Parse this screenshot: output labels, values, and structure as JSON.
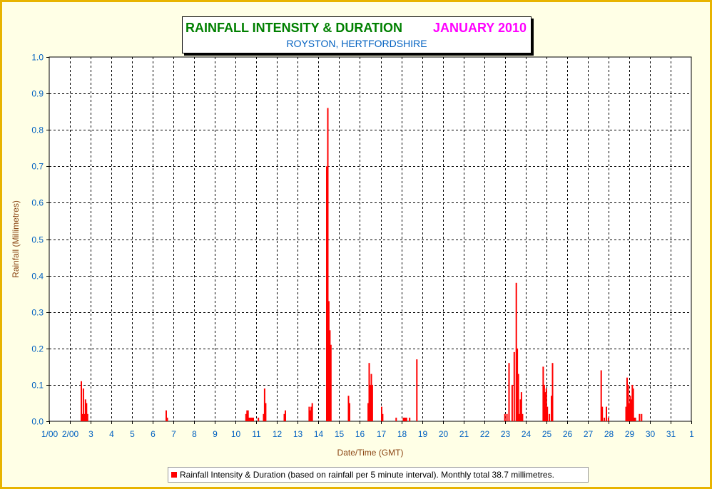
{
  "colors": {
    "frame": "#e8b400",
    "background": "#ffffe6",
    "title_green": "#008000",
    "title_magenta": "#ff00ff",
    "subtitle_blue": "#0060c0",
    "axis_blue": "#0060c0",
    "axis_label": "#8b4513",
    "bar": "#ff0000"
  },
  "chart_data": {
    "type": "bar",
    "title": "RAINFALL INTENSITY & DURATION",
    "title_month": "JANUARY 2010",
    "subtitle": "ROYSTON, HERTFORDSHIRE",
    "xlabel": "Date/Time (GMT)",
    "ylabel": "Rainfall (Millimetres)",
    "ylim": [
      0,
      1.0
    ],
    "xlim_days": [
      0,
      31
    ],
    "grid": true,
    "legend_position": "bottom",
    "yticks": [
      "0.0",
      "0.1",
      "0.2",
      "0.3",
      "0.4",
      "0.5",
      "0.6",
      "0.7",
      "0.8",
      "0.9",
      "1.0"
    ],
    "xticks": [
      "1/00",
      "2/00",
      "3",
      "4",
      "5",
      "6",
      "7",
      "8",
      "9",
      "10",
      "11",
      "12",
      "13",
      "14",
      "15",
      "16",
      "17",
      "18",
      "19",
      "20",
      "21",
      "22",
      "23",
      "24",
      "25",
      "26",
      "27",
      "28",
      "29",
      "30",
      "31",
      "1"
    ],
    "series": [
      {
        "name": "Rainfall Intensity & Duration (based on rainfall per 5 minute interval). Monthly total 38.7 millimetres.",
        "points": [
          [
            1.55,
            0.11
          ],
          [
            1.6,
            0.02
          ],
          [
            1.65,
            0.09
          ],
          [
            1.7,
            0.02
          ],
          [
            1.75,
            0.06
          ],
          [
            1.8,
            0.05
          ],
          [
            1.85,
            0.02
          ],
          [
            5.65,
            0.03
          ],
          [
            5.7,
            0.01
          ],
          [
            9.5,
            0.02
          ],
          [
            9.55,
            0.03
          ],
          [
            9.6,
            0.03
          ],
          [
            9.65,
            0.01
          ],
          [
            9.7,
            0.01
          ],
          [
            9.75,
            0.01
          ],
          [
            9.8,
            0.01
          ],
          [
            9.85,
            0.01
          ],
          [
            10.1,
            0.01
          ],
          [
            10.35,
            0.02
          ],
          [
            10.4,
            0.09
          ],
          [
            10.45,
            0.05
          ],
          [
            11.35,
            0.02
          ],
          [
            11.4,
            0.03
          ],
          [
            12.55,
            0.04
          ],
          [
            12.6,
            0.03
          ],
          [
            12.65,
            0.04
          ],
          [
            12.7,
            0.05
          ],
          [
            13.4,
            0.7
          ],
          [
            13.45,
            0.86
          ],
          [
            13.5,
            0.33
          ],
          [
            13.55,
            0.25
          ],
          [
            13.6,
            0.21
          ],
          [
            14.45,
            0.07
          ],
          [
            14.5,
            0.05
          ],
          [
            15.4,
            0.05
          ],
          [
            15.45,
            0.16
          ],
          [
            15.5,
            0.1
          ],
          [
            15.55,
            0.13
          ],
          [
            15.6,
            0.1
          ],
          [
            16.05,
            0.04
          ],
          [
            16.1,
            0.02
          ],
          [
            16.75,
            0.01
          ],
          [
            17.1,
            0.01
          ],
          [
            17.15,
            0.01
          ],
          [
            17.2,
            0.01
          ],
          [
            17.25,
            0.01
          ],
          [
            17.4,
            0.01
          ],
          [
            17.75,
            0.17
          ],
          [
            22.0,
            0.02
          ],
          [
            22.1,
            0.02
          ],
          [
            22.2,
            0.16
          ],
          [
            22.35,
            0.1
          ],
          [
            22.45,
            0.19
          ],
          [
            22.55,
            0.38
          ],
          [
            22.6,
            0.2
          ],
          [
            22.65,
            0.13
          ],
          [
            22.7,
            0.02
          ],
          [
            22.75,
            0.06
          ],
          [
            22.8,
            0.08
          ],
          [
            22.85,
            0.02
          ],
          [
            23.85,
            0.15
          ],
          [
            23.9,
            0.1
          ],
          [
            23.95,
            0.08
          ],
          [
            24.0,
            0.09
          ],
          [
            24.05,
            0.04
          ],
          [
            24.15,
            0.02
          ],
          [
            24.25,
            0.07
          ],
          [
            24.3,
            0.16
          ],
          [
            26.65,
            0.14
          ],
          [
            26.7,
            0.04
          ],
          [
            26.8,
            0.01
          ],
          [
            26.9,
            0.04
          ],
          [
            27.0,
            0.01
          ],
          [
            27.85,
            0.04
          ],
          [
            27.9,
            0.12
          ],
          [
            27.95,
            0.1
          ],
          [
            28.0,
            0.05
          ],
          [
            28.05,
            0.07
          ],
          [
            28.1,
            0.06
          ],
          [
            28.15,
            0.1
          ],
          [
            28.2,
            0.09
          ],
          [
            28.25,
            0.01
          ],
          [
            28.3,
            0.01
          ],
          [
            28.5,
            0.02
          ],
          [
            28.6,
            0.02
          ]
        ]
      }
    ]
  }
}
